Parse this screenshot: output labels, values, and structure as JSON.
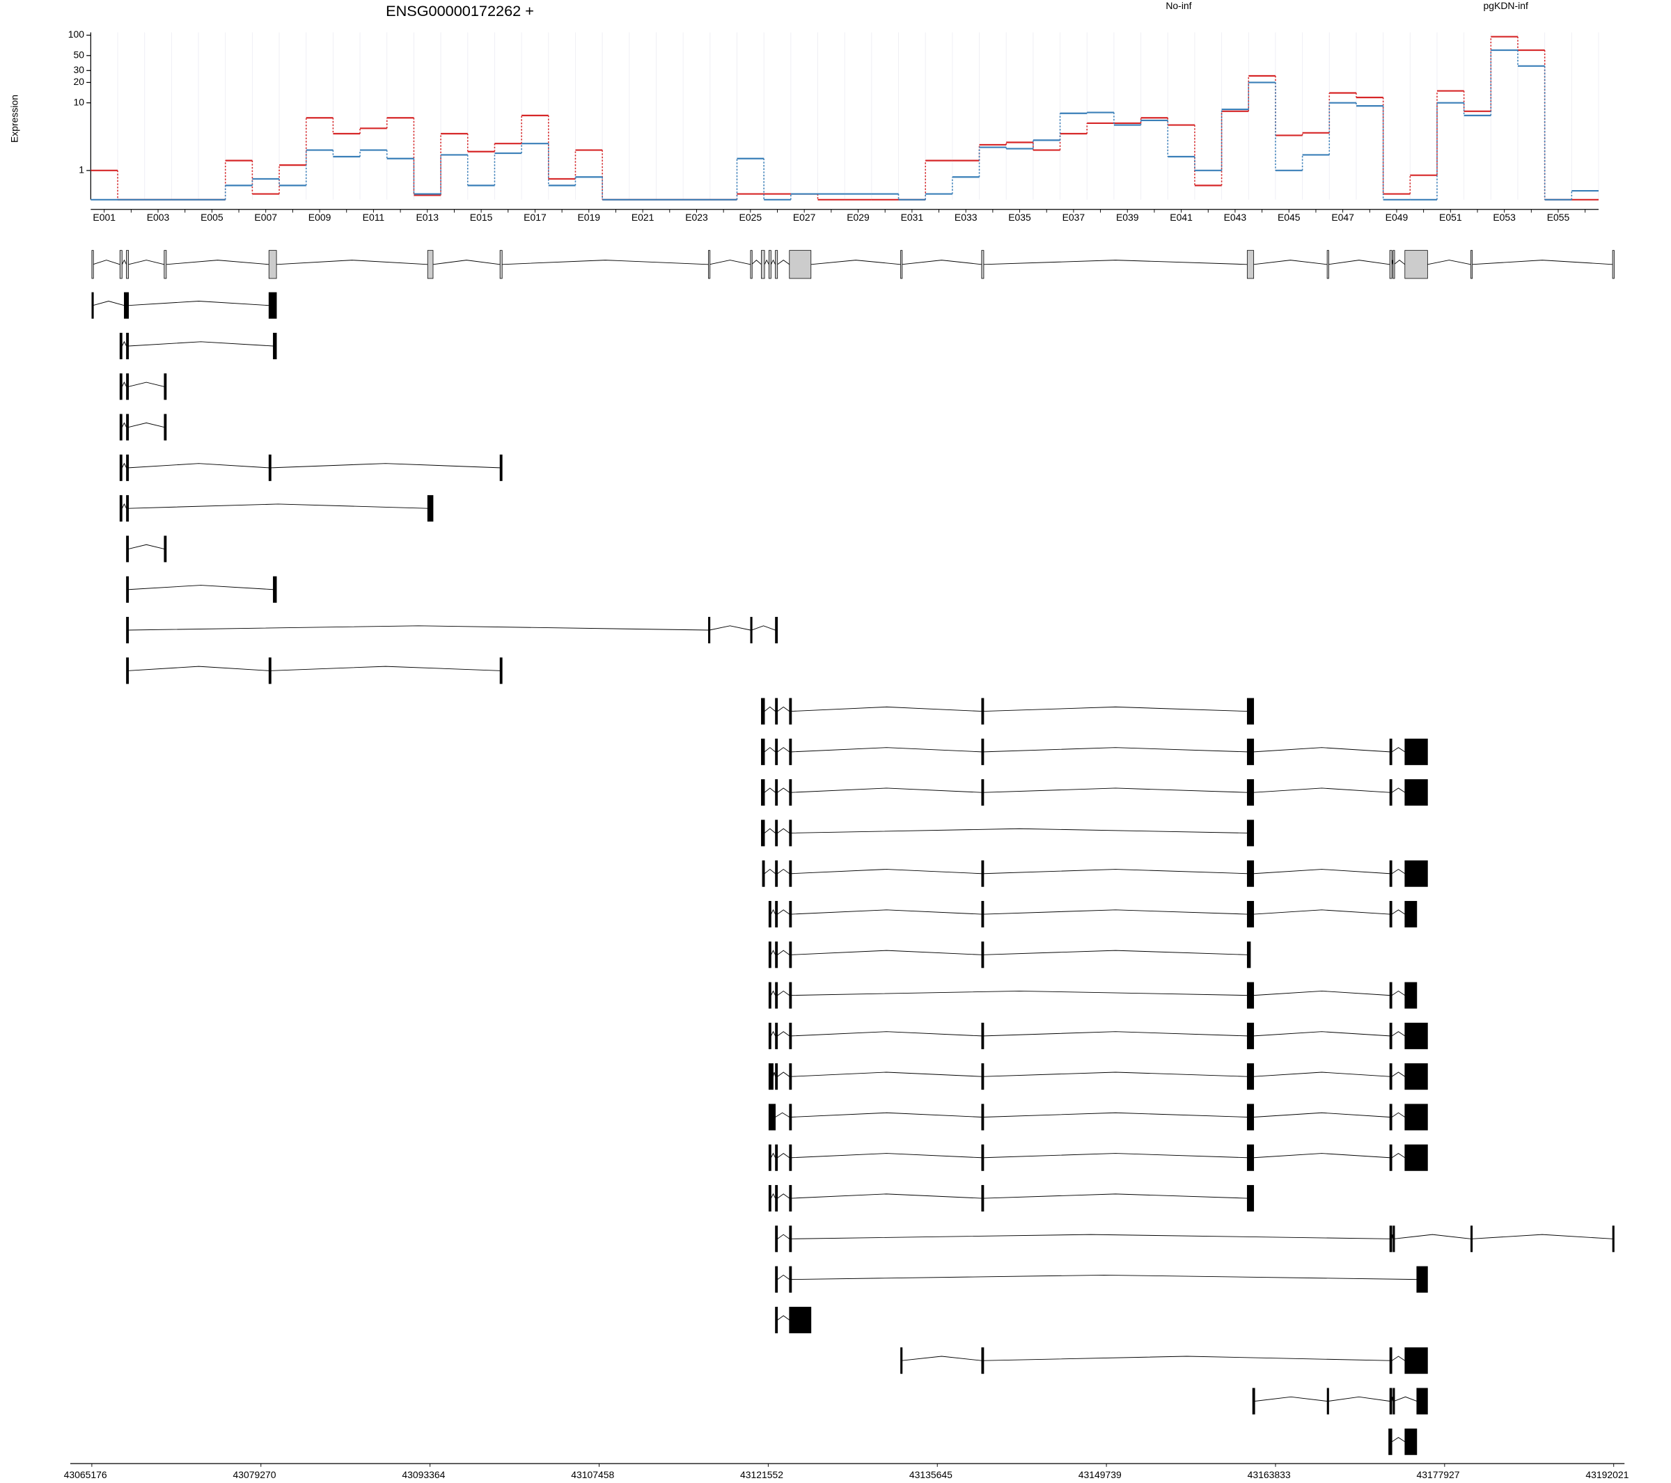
{
  "chart_data": {
    "type": "exon-usage",
    "title": "ENSG00000172262 +",
    "y_label": "Expression",
    "log_scale": true,
    "ylim": [
      0.37,
      110
    ],
    "yticks": [
      1,
      10,
      20,
      30,
      50,
      100
    ],
    "categories": [
      "E001",
      null,
      "E003",
      null,
      "E005",
      null,
      "E007",
      null,
      "E009",
      null,
      "E011",
      null,
      "E013",
      null,
      "E015",
      null,
      "E017",
      null,
      "E019",
      null,
      "E021",
      null,
      "E023",
      null,
      "E025",
      null,
      "E027",
      null,
      "E029",
      null,
      "E031",
      null,
      "E033",
      null,
      "E035",
      null,
      "E037",
      null,
      "E039",
      null,
      "E041",
      null,
      "E043",
      null,
      "E045",
      null,
      "E047",
      null,
      "E049",
      null,
      "E051",
      null,
      "E053",
      null,
      "E055",
      null
    ],
    "series": [
      {
        "name": "No-inf",
        "color": "#d62728",
        "values": [
          1.0,
          0.37,
          0.37,
          0.37,
          0.37,
          1.4,
          0.45,
          1.2,
          6,
          3.5,
          4.2,
          6,
          0.43,
          3.5,
          1.9,
          2.5,
          6.5,
          0.75,
          2,
          0.37,
          0.37,
          0.37,
          0.37,
          0.37,
          0.45,
          0.45,
          0.45,
          0.37,
          0.37,
          0.37,
          0.37,
          1.4,
          1.4,
          2.4,
          2.6,
          2,
          3.5,
          5,
          5,
          6,
          4.7,
          0.6,
          7.5,
          25,
          3.3,
          3.6,
          14,
          12,
          0.45,
          0.85,
          15,
          7.5,
          95,
          60,
          0.37,
          0.37
        ]
      },
      {
        "name": "pgKDN-inf",
        "color": "#3a7fb8",
        "values": [
          0.37,
          0.37,
          0.37,
          0.37,
          0.37,
          0.6,
          0.75,
          0.6,
          2,
          1.6,
          2,
          1.5,
          0.45,
          1.7,
          0.6,
          1.8,
          2.5,
          0.6,
          0.8,
          0.37,
          0.37,
          0.37,
          0.37,
          0.37,
          1.5,
          0.37,
          0.45,
          0.45,
          0.45,
          0.45,
          0.37,
          0.45,
          0.8,
          2.2,
          2.1,
          2.8,
          7,
          7.2,
          4.7,
          5.5,
          1.6,
          1.0,
          8,
          20,
          1.0,
          1.7,
          10,
          9,
          0.37,
          0.37,
          10,
          6.5,
          60,
          35,
          0.37,
          0.5
        ]
      }
    ],
    "xlim": [
      43065176,
      43192021
    ],
    "xticks": [
      43065176,
      43079270,
      43093364,
      43107458,
      43121552,
      43135645,
      43149739,
      43163833,
      43177927,
      43192021
    ],
    "gene_model": [
      [
        43065176,
        43065266
      ],
      [
        43067516,
        43067696
      ],
      [
        43068056,
        43068236
      ],
      [
        43071206,
        43071386
      ],
      [
        43079936,
        43080566
      ],
      [
        43093166,
        43093616
      ],
      [
        43099196,
        43099376
      ],
      [
        43116566,
        43116656
      ],
      [
        43120076,
        43120166
      ],
      [
        43120976,
        43121246
      ],
      [
        43121606,
        43121786
      ],
      [
        43122146,
        43122326
      ],
      [
        43123316,
        43125116
      ],
      [
        43132586,
        43132676
      ],
      [
        43139336,
        43139516
      ],
      [
        43161476,
        43162016
      ],
      [
        43168136,
        43168226
      ],
      [
        43173356,
        43173536
      ],
      [
        43173626,
        43173716
      ],
      [
        43174616,
        43176506
      ],
      [
        43180106,
        43180196
      ],
      [
        43191926,
        43192016
      ]
    ],
    "transcripts": [
      [
        [
          43065176,
          43065266
        ],
        [
          43067876,
          43068236
        ],
        [
          43079936,
          43080566
        ]
      ],
      [
        [
          43067516,
          43067696
        ],
        [
          43068056,
          43068236
        ],
        [
          43080296,
          43080566
        ]
      ],
      [
        [
          43067516,
          43067696
        ],
        [
          43068056,
          43068236
        ],
        [
          43071206,
          43071386
        ]
      ],
      [
        [
          43067516,
          43067696
        ],
        [
          43068056,
          43068236
        ],
        [
          43071206,
          43071386
        ]
      ],
      [
        [
          43067516,
          43067696
        ],
        [
          43068056,
          43068236
        ],
        [
          43079936,
          43080116
        ],
        [
          43099196,
          43099376
        ]
      ],
      [
        [
          43067516,
          43067696
        ],
        [
          43068056,
          43068236
        ],
        [
          43093166,
          43093616
        ]
      ],
      [
        [
          43068056,
          43068236
        ],
        [
          43071206,
          43071386
        ]
      ],
      [
        [
          43068056,
          43068236
        ],
        [
          43080296,
          43080566
        ]
      ],
      [
        [
          43068056,
          43068236
        ],
        [
          43116566,
          43116656
        ],
        [
          43120076,
          43120166
        ],
        [
          43122146,
          43122326
        ]
      ],
      [
        [
          43068056,
          43068236
        ],
        [
          43079936,
          43080116
        ],
        [
          43099196,
          43099376
        ]
      ],
      [
        [
          43120976,
          43121246
        ],
        [
          43122146,
          43122326
        ],
        [
          43123316,
          43123496
        ],
        [
          43139336,
          43139516
        ],
        [
          43161476,
          43162016
        ]
      ],
      [
        [
          43120976,
          43121246
        ],
        [
          43122146,
          43122326
        ],
        [
          43123316,
          43123496
        ],
        [
          43139336,
          43139516
        ],
        [
          43161476,
          43162016
        ],
        [
          43173356,
          43173536
        ],
        [
          43174616,
          43176506
        ]
      ],
      [
        [
          43120976,
          43121246
        ],
        [
          43122146,
          43122326
        ],
        [
          43123316,
          43123496
        ],
        [
          43139336,
          43139516
        ],
        [
          43161476,
          43162016
        ],
        [
          43173356,
          43173536
        ],
        [
          43174616,
          43176506
        ]
      ],
      [
        [
          43120976,
          43121246
        ],
        [
          43122146,
          43122326
        ],
        [
          43123316,
          43123496
        ],
        [
          43161476,
          43162016
        ]
      ],
      [
        [
          43121066,
          43121246
        ],
        [
          43122146,
          43122326
        ],
        [
          43123316,
          43123496
        ],
        [
          43139336,
          43139516
        ],
        [
          43161476,
          43162016
        ],
        [
          43173356,
          43173536
        ],
        [
          43174616,
          43176506
        ]
      ],
      [
        [
          43121606,
          43121786
        ],
        [
          43122146,
          43122326
        ],
        [
          43123316,
          43123496
        ],
        [
          43139336,
          43139516
        ],
        [
          43161476,
          43162016
        ],
        [
          43173356,
          43173536
        ],
        [
          43174616,
          43175606
        ]
      ],
      [
        [
          43121606,
          43121786
        ],
        [
          43122146,
          43122326
        ],
        [
          43123316,
          43123496
        ],
        [
          43139336,
          43139516
        ],
        [
          43161476,
          43161746
        ]
      ],
      [
        [
          43121606,
          43121786
        ],
        [
          43122146,
          43122326
        ],
        [
          43123316,
          43123496
        ],
        [
          43161476,
          43162016
        ],
        [
          43173356,
          43173536
        ],
        [
          43174616,
          43175606
        ]
      ],
      [
        [
          43121606,
          43121786
        ],
        [
          43122146,
          43122326
        ],
        [
          43123316,
          43123496
        ],
        [
          43139336,
          43139516
        ],
        [
          43161476,
          43162016
        ],
        [
          43173356,
          43173536
        ],
        [
          43174616,
          43176506
        ]
      ],
      [
        [
          43121606,
          43121966
        ],
        [
          43122146,
          43122326
        ],
        [
          43123316,
          43123496
        ],
        [
          43139336,
          43139516
        ],
        [
          43161476,
          43162016
        ],
        [
          43173356,
          43173536
        ],
        [
          43174616,
          43176506
        ]
      ],
      [
        [
          43121606,
          43122146
        ],
        [
          43123316,
          43123496
        ],
        [
          43139336,
          43139516
        ],
        [
          43161476,
          43162016
        ],
        [
          43173356,
          43173536
        ],
        [
          43174616,
          43176506
        ]
      ],
      [
        [
          43121606,
          43121786
        ],
        [
          43122146,
          43122326
        ],
        [
          43123316,
          43123496
        ],
        [
          43139336,
          43139516
        ],
        [
          43161476,
          43162016
        ],
        [
          43173356,
          43173536
        ],
        [
          43174616,
          43176506
        ]
      ],
      [
        [
          43121606,
          43121786
        ],
        [
          43122146,
          43122326
        ],
        [
          43123316,
          43123496
        ],
        [
          43139336,
          43139516
        ],
        [
          43161476,
          43162016
        ]
      ],
      [
        [
          43122146,
          43122326
        ],
        [
          43123316,
          43123496
        ],
        [
          43173356,
          43173536
        ],
        [
          43173626,
          43173716
        ],
        [
          43180106,
          43180196
        ],
        [
          43191926,
          43192016
        ]
      ],
      [
        [
          43122146,
          43122326
        ],
        [
          43123316,
          43123496
        ],
        [
          43175606,
          43176506
        ]
      ],
      [
        [
          43122146,
          43122326
        ],
        [
          43123316,
          43125116
        ]
      ],
      [
        [
          43132586,
          43132676
        ],
        [
          43139336,
          43139516
        ],
        [
          43173356,
          43173536
        ],
        [
          43174616,
          43176506
        ]
      ],
      [
        [
          43161926,
          43162106
        ],
        [
          43168136,
          43168226
        ],
        [
          43173356,
          43173536
        ],
        [
          43173626,
          43173716
        ],
        [
          43175606,
          43176506
        ]
      ],
      [
        [
          43173266,
          43173536
        ],
        [
          43174616,
          43175606
        ]
      ]
    ]
  }
}
